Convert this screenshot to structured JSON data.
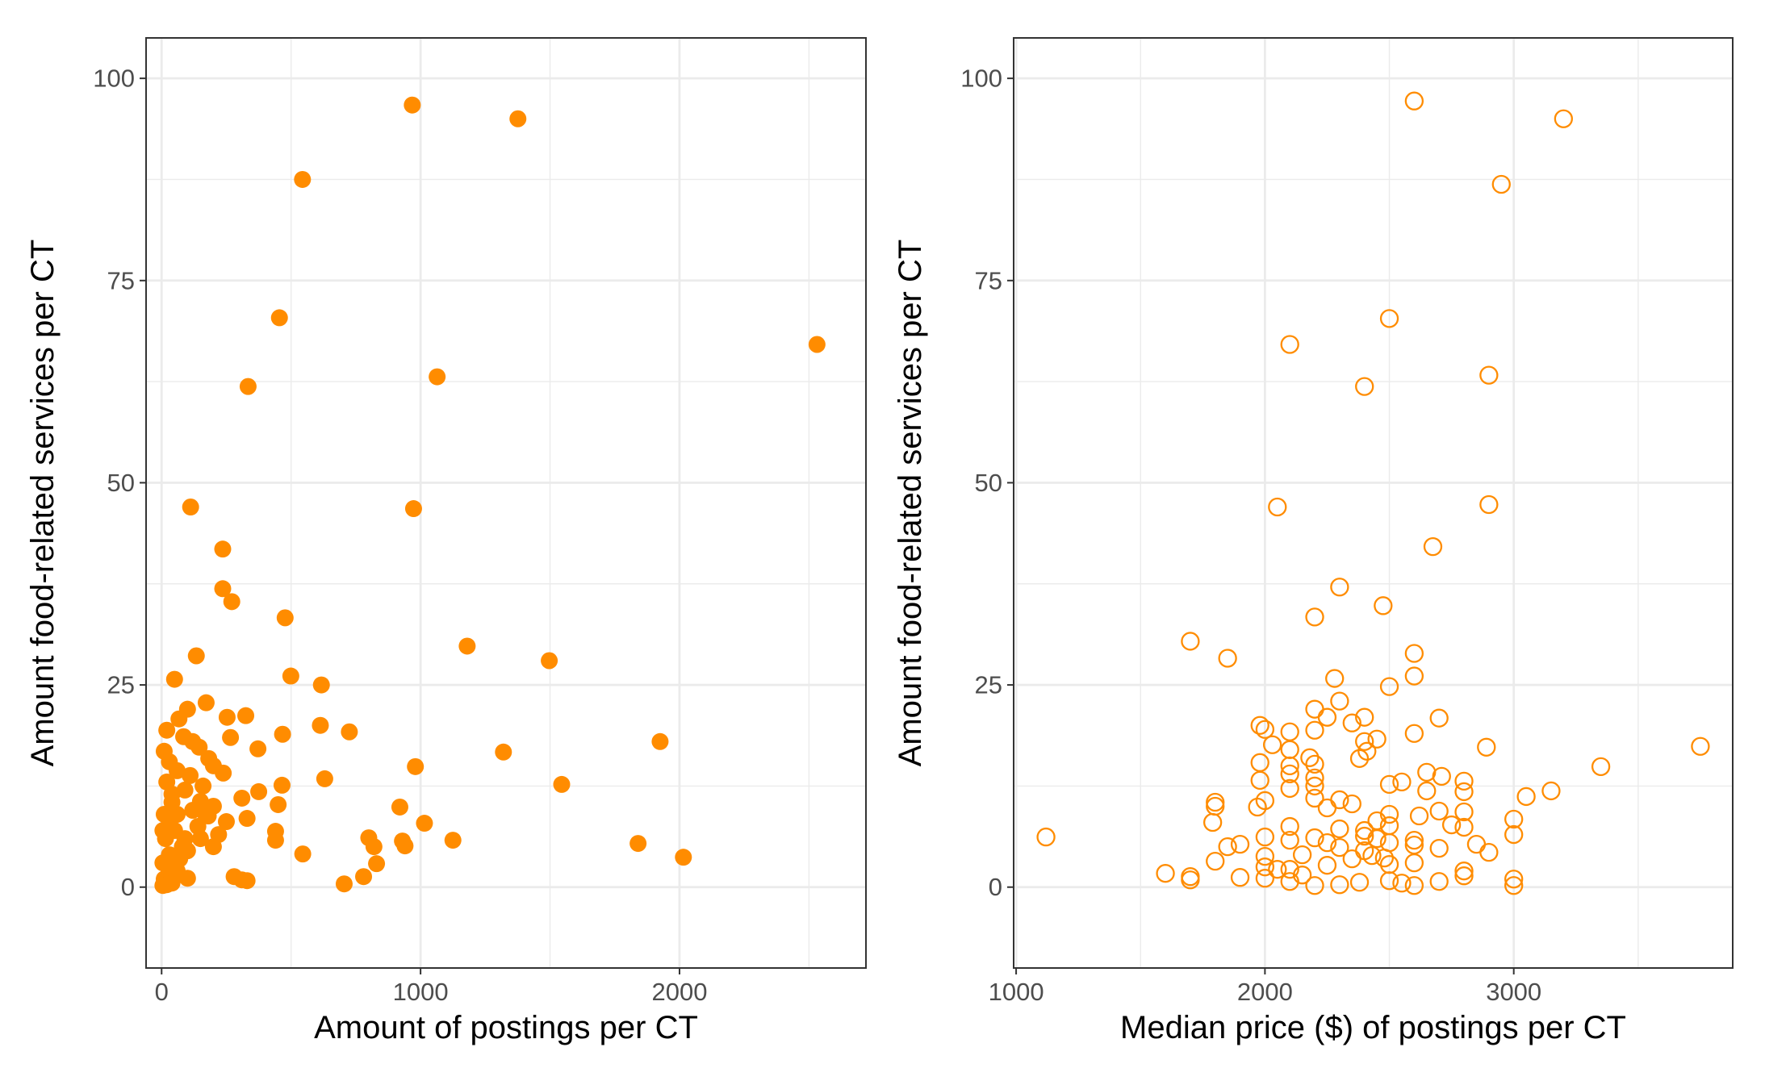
{
  "chart_data": [
    {
      "type": "scatter",
      "title": "",
      "xlabel": "Amount of postings per CT",
      "ylabel": "Amount food-related services per CT",
      "xlim": [
        -60,
        2720
      ],
      "ylim": [
        -10,
        105
      ],
      "x_ticks": [
        "0",
        "1000",
        "2000"
      ],
      "y_ticks": [
        "0",
        "25",
        "50",
        "75",
        "100"
      ],
      "grid": true,
      "marker": "filled-circle",
      "color": "#FF8C00",
      "points": [
        [
          968,
          96.7
        ],
        [
          1376,
          95
        ],
        [
          544,
          87.5
        ],
        [
          455,
          70.4
        ],
        [
          2531,
          67.1
        ],
        [
          1064,
          63.1
        ],
        [
          334,
          61.9
        ],
        [
          112,
          47
        ],
        [
          973,
          46.8
        ],
        [
          236,
          41.8
        ],
        [
          236,
          36.9
        ],
        [
          271,
          35.3
        ],
        [
          477,
          33.3
        ],
        [
          1180,
          29.8
        ],
        [
          1497,
          28
        ],
        [
          134,
          28.6
        ],
        [
          50,
          25.7
        ],
        [
          499,
          26.1
        ],
        [
          617,
          25
        ],
        [
          172,
          22.8
        ],
        [
          253,
          21
        ],
        [
          325,
          21.2
        ],
        [
          100,
          22
        ],
        [
          67,
          20.8
        ],
        [
          20,
          19.4
        ],
        [
          613,
          20
        ],
        [
          725,
          19.2
        ],
        [
          467,
          18.9
        ],
        [
          1925,
          18
        ],
        [
          85,
          18.6
        ],
        [
          120,
          18
        ],
        [
          266,
          18.5
        ],
        [
          145,
          17.3
        ],
        [
          372,
          17.1
        ],
        [
          10,
          16.8
        ],
        [
          1320,
          16.7
        ],
        [
          182,
          15.9
        ],
        [
          30,
          15.5
        ],
        [
          200,
          15
        ],
        [
          980,
          14.9
        ],
        [
          238,
          14.1
        ],
        [
          60,
          14.4
        ],
        [
          110,
          13.8
        ],
        [
          630,
          13.4
        ],
        [
          1545,
          12.7
        ],
        [
          465,
          12.6
        ],
        [
          20,
          13
        ],
        [
          90,
          12
        ],
        [
          160,
          12.5
        ],
        [
          375,
          11.8
        ],
        [
          40,
          11.5
        ],
        [
          310,
          11
        ],
        [
          150,
          10.6
        ],
        [
          200,
          10
        ],
        [
          1015,
          7.9
        ],
        [
          920,
          9.9
        ],
        [
          450,
          10.2
        ],
        [
          10,
          9
        ],
        [
          30,
          8.5
        ],
        [
          60,
          9
        ],
        [
          120,
          9.5
        ],
        [
          250,
          8.1
        ],
        [
          180,
          8.8
        ],
        [
          330,
          8.5
        ],
        [
          800,
          6.1
        ],
        [
          930,
          5.7
        ],
        [
          1125,
          5.8
        ],
        [
          1840,
          5.4
        ],
        [
          2015,
          3.7
        ],
        [
          440,
          6.9
        ],
        [
          440,
          5.8
        ],
        [
          940,
          5.1
        ],
        [
          820,
          5
        ],
        [
          545,
          4.1
        ],
        [
          830,
          2.9
        ],
        [
          780,
          1.3
        ],
        [
          705,
          0.4
        ],
        [
          280,
          1.3
        ],
        [
          310,
          0.9
        ],
        [
          330,
          0.8
        ],
        [
          100,
          1.1
        ],
        [
          10,
          1
        ],
        [
          20,
          0.3
        ],
        [
          40,
          0.5
        ],
        [
          60,
          2
        ],
        [
          5,
          3
        ],
        [
          30,
          4
        ],
        [
          80,
          5
        ],
        [
          15,
          6
        ],
        [
          50,
          7
        ],
        [
          150,
          6
        ],
        [
          200,
          5
        ],
        [
          5,
          0.2
        ],
        [
          25,
          2.5
        ],
        [
          70,
          3.5
        ],
        [
          100,
          4.5
        ],
        [
          140,
          7.5
        ],
        [
          170,
          9
        ],
        [
          40,
          10.5
        ],
        [
          5,
          7
        ],
        [
          220,
          6.5
        ],
        [
          90,
          6
        ]
      ]
    },
    {
      "type": "scatter",
      "title": "",
      "xlabel": "Median price ($) of postings per CT",
      "ylabel": "Amount food-related services per CT",
      "xlim": [
        990,
        3880
      ],
      "ylim": [
        -10,
        105
      ],
      "x_ticks": [
        "1000",
        "2000",
        "3000"
      ],
      "y_ticks": [
        "0",
        "25",
        "50",
        "75",
        "100"
      ],
      "grid": true,
      "marker": "hollow-circle",
      "color": "#FF8C00",
      "points": [
        [
          2600,
          97.2
        ],
        [
          3200,
          95
        ],
        [
          2950,
          86.9
        ],
        [
          2500,
          70.3
        ],
        [
          2100,
          67.1
        ],
        [
          2900,
          63.3
        ],
        [
          2400,
          61.9
        ],
        [
          2050,
          47
        ],
        [
          2900,
          47.3
        ],
        [
          2675,
          42.1
        ],
        [
          2300,
          37.1
        ],
        [
          2475,
          34.8
        ],
        [
          2200,
          33.4
        ],
        [
          1700,
          30.4
        ],
        [
          1850,
          28.3
        ],
        [
          2600,
          28.9
        ],
        [
          2600,
          26.1
        ],
        [
          2280,
          25.8
        ],
        [
          2500,
          24.8
        ],
        [
          2300,
          23
        ],
        [
          2200,
          22
        ],
        [
          2400,
          21
        ],
        [
          2700,
          20.9
        ],
        [
          1980,
          20
        ],
        [
          2250,
          21
        ],
        [
          2350,
          20.3
        ],
        [
          2000,
          19.5
        ],
        [
          2100,
          19.2
        ],
        [
          2600,
          19
        ],
        [
          2200,
          19.4
        ],
        [
          2450,
          18.3
        ],
        [
          2400,
          18
        ],
        [
          2030,
          17.6
        ],
        [
          2100,
          17
        ],
        [
          2410,
          16.8
        ],
        [
          2890,
          17.3
        ],
        [
          3750,
          17.4
        ],
        [
          1980,
          15.4
        ],
        [
          2180,
          16
        ],
        [
          2380,
          15.9
        ],
        [
          2200,
          15.2
        ],
        [
          2100,
          15
        ],
        [
          3350,
          14.9
        ],
        [
          2650,
          14.2
        ],
        [
          2100,
          14
        ],
        [
          2200,
          13.5
        ],
        [
          2710,
          13.7
        ],
        [
          1980,
          13.2
        ],
        [
          2550,
          13
        ],
        [
          2800,
          13.1
        ],
        [
          2500,
          12.7
        ],
        [
          3150,
          11.9
        ],
        [
          2200,
          12.5
        ],
        [
          2100,
          12.2
        ],
        [
          2650,
          11.9
        ],
        [
          2800,
          11.8
        ],
        [
          3050,
          11.2
        ],
        [
          2300,
          10.8
        ],
        [
          2200,
          11
        ],
        [
          1800,
          10.5
        ],
        [
          2350,
          10.3
        ],
        [
          2250,
          9.8
        ],
        [
          2000,
          10.7
        ],
        [
          1800,
          10
        ],
        [
          1970,
          9.9
        ],
        [
          2500,
          9
        ],
        [
          2450,
          8.2
        ],
        [
          2620,
          8.8
        ],
        [
          2700,
          9.4
        ],
        [
          2800,
          9.3
        ],
        [
          3000,
          8.4
        ],
        [
          1790,
          8
        ],
        [
          2100,
          7.5
        ],
        [
          2300,
          7.2
        ],
        [
          2400,
          7
        ],
        [
          2500,
          7.6
        ],
        [
          2600,
          5.8
        ],
        [
          2750,
          7.7
        ],
        [
          2800,
          7.4
        ],
        [
          3000,
          6.5
        ],
        [
          1120,
          6.2
        ],
        [
          2000,
          6.2
        ],
        [
          2200,
          6.1
        ],
        [
          2400,
          6.3
        ],
        [
          2450,
          6
        ],
        [
          2250,
          5.5
        ],
        [
          1900,
          5.3
        ],
        [
          1850,
          5
        ],
        [
          2100,
          5.8
        ],
        [
          2300,
          4.9
        ],
        [
          2500,
          5.5
        ],
        [
          2600,
          5.2
        ],
        [
          2700,
          4.8
        ],
        [
          2850,
          5.3
        ],
        [
          2900,
          4.3
        ],
        [
          2000,
          3.8
        ],
        [
          2150,
          4
        ],
        [
          2350,
          3.5
        ],
        [
          2400,
          4.5
        ],
        [
          2480,
          3.6
        ],
        [
          1800,
          3.2
        ],
        [
          2000,
          2.5
        ],
        [
          2100,
          2.2
        ],
        [
          2250,
          2.7
        ],
        [
          2500,
          2.8
        ],
        [
          2600,
          3
        ],
        [
          2800,
          2
        ],
        [
          1600,
          1.7
        ],
        [
          1700,
          1.3
        ],
        [
          1700,
          0.9
        ],
        [
          1900,
          1.2
        ],
        [
          2000,
          1.1
        ],
        [
          2100,
          0.7
        ],
        [
          2150,
          1.5
        ],
        [
          2200,
          0.2
        ],
        [
          2300,
          0.3
        ],
        [
          2380,
          0.6
        ],
        [
          2500,
          0.8
        ],
        [
          2550,
          0.5
        ],
        [
          2600,
          0.2
        ],
        [
          2700,
          0.7
        ],
        [
          2800,
          1.4
        ],
        [
          3000,
          1
        ],
        [
          3000,
          0.2
        ],
        [
          2050,
          2.2
        ],
        [
          2430,
          3.9
        ]
      ]
    }
  ]
}
